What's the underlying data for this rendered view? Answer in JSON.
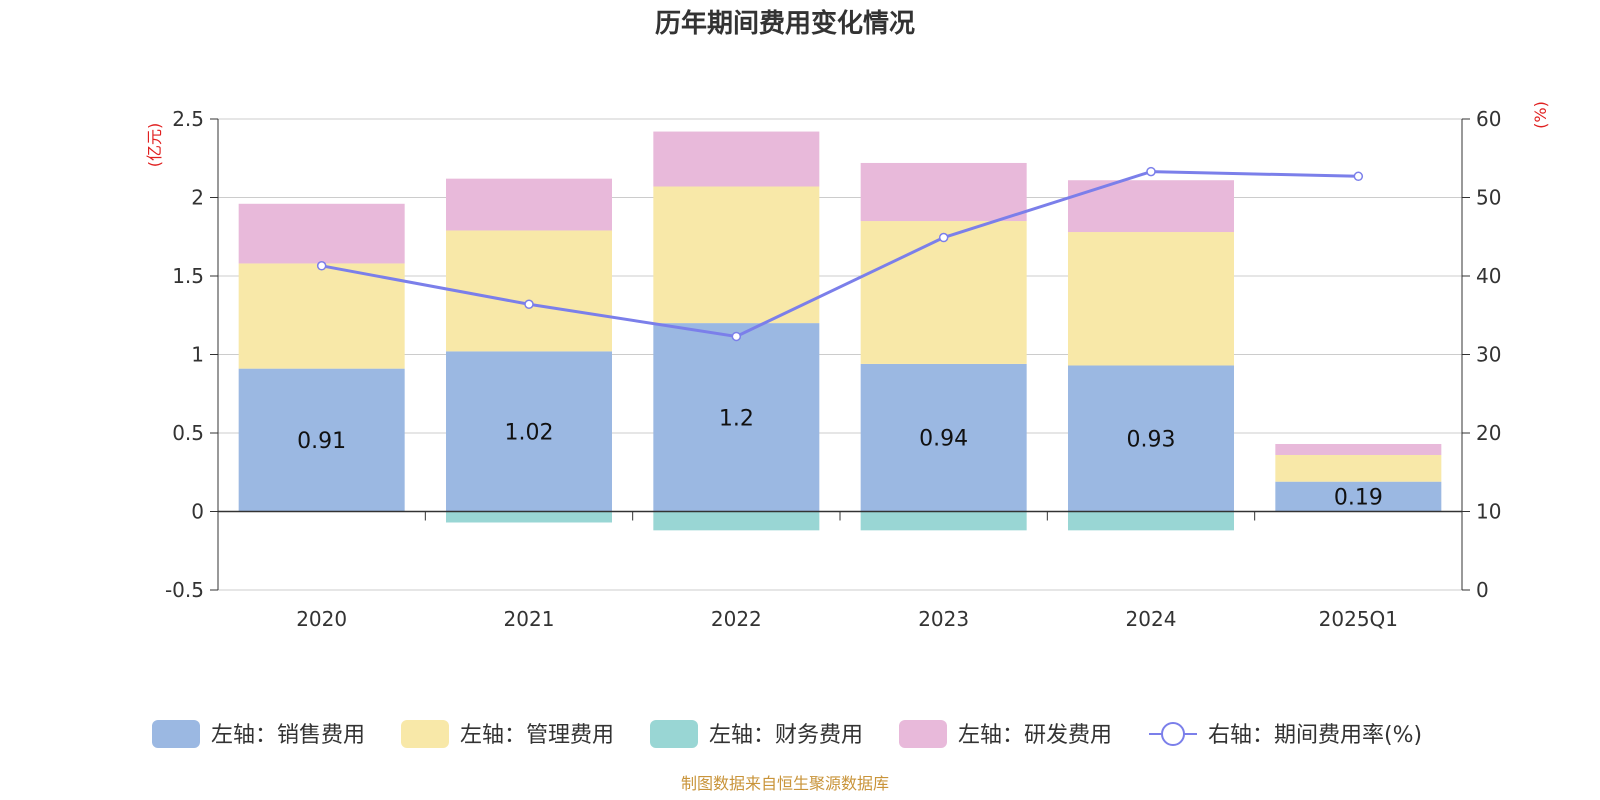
{
  "chart_data": {
    "type": "bar",
    "title": "历年期间费用变化情况",
    "categories": [
      "2020",
      "2021",
      "2022",
      "2023",
      "2024",
      "2025Q1"
    ],
    "left_axis": {
      "unit": "(亿元)",
      "ylim": [
        -0.5,
        2.5
      ],
      "ticks": [
        "-0.5",
        "0",
        "0.5",
        "1",
        "1.5",
        "2",
        "2.5"
      ]
    },
    "right_axis": {
      "unit": "(%)",
      "ylim": [
        0,
        60
      ],
      "ticks": [
        "0",
        "10",
        "20",
        "30",
        "40",
        "50",
        "60"
      ]
    },
    "grid": true,
    "legend_position": "bottom",
    "series": [
      {
        "name": "左轴：销售费用",
        "type": "bar",
        "color": "#9bb8e2",
        "values": [
          0.91,
          1.02,
          1.2,
          0.94,
          0.93,
          0.19
        ],
        "labels": [
          "0.91",
          "1.02",
          "1.2",
          "0.94",
          "0.93",
          "0.19"
        ]
      },
      {
        "name": "左轴：管理费用",
        "type": "bar",
        "color": "#f8e8a8",
        "values": [
          0.67,
          0.77,
          0.87,
          0.91,
          0.85,
          0.17
        ]
      },
      {
        "name": "左轴：财务费用",
        "type": "bar",
        "color": "#99d6d4",
        "values": [
          0.0,
          -0.07,
          -0.12,
          -0.12,
          -0.12,
          0.0
        ]
      },
      {
        "name": "左轴：研发费用",
        "type": "bar",
        "color": "#e8b9da",
        "values": [
          0.38,
          0.33,
          0.35,
          0.37,
          0.33,
          0.07
        ]
      },
      {
        "name": "右轴：期间费用率(%)",
        "type": "line",
        "color": "#7b7fea",
        "values": [
          41.3,
          36.4,
          32.3,
          44.9,
          53.3,
          52.7
        ]
      }
    ]
  },
  "source": "制图数据来自恒生聚源数据库"
}
